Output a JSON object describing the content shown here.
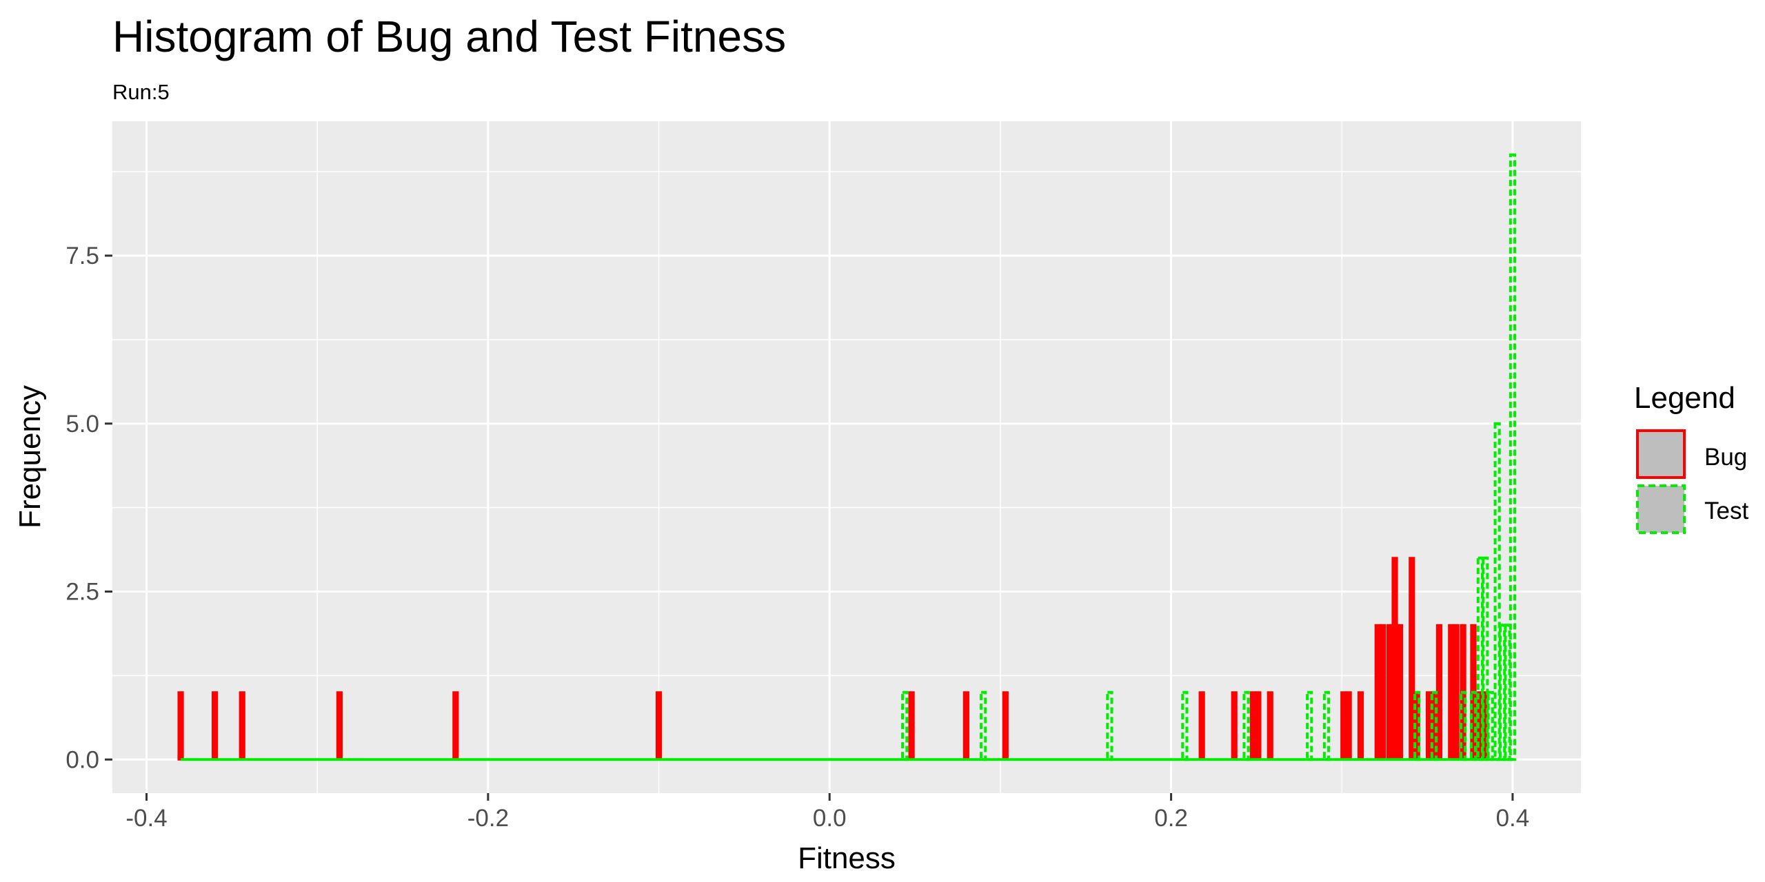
{
  "chart_data": {
    "type": "histogram",
    "title": "Histogram of Bug and Test Fitness",
    "subtitle": "Run:5",
    "xlabel": "Fitness",
    "ylabel": "Frequency",
    "xlim": [
      -0.42,
      0.44
    ],
    "ylim": [
      -0.5,
      9.5
    ],
    "x_ticks": [
      -0.4,
      -0.2,
      0.0,
      0.2,
      0.4
    ],
    "x_tick_labels": [
      "-0.4",
      "-0.2",
      "0.0",
      "0.2",
      "0.4"
    ],
    "y_ticks": [
      0,
      2.5,
      5,
      7.5
    ],
    "y_tick_labels": [
      "0.0",
      "2.5",
      "5.0",
      "7.5"
    ],
    "x_minor": [
      -0.3,
      -0.1,
      0.1,
      0.3
    ],
    "y_minor": [
      1.25,
      3.75,
      6.25,
      8.75
    ],
    "grid": true,
    "legend": {
      "title": "Legend",
      "position": "right",
      "entries": [
        {
          "name": "Bug",
          "color": "#ff0000",
          "linetype": "solid"
        },
        {
          "name": "Test",
          "color": "#00ee00",
          "linetype": "dashed"
        }
      ]
    },
    "panel_background": "#ebebeb",
    "series": [
      {
        "name": "Bug",
        "color": "#ff0000",
        "range": [
          -0.38,
          0.4
        ],
        "bins": [
          {
            "x": -0.38,
            "count": 1
          },
          {
            "x": -0.36,
            "count": 1
          },
          {
            "x": -0.344,
            "count": 1
          },
          {
            "x": -0.287,
            "count": 1
          },
          {
            "x": -0.219,
            "count": 1
          },
          {
            "x": -0.1,
            "count": 1
          },
          {
            "x": 0.048,
            "count": 1
          },
          {
            "x": 0.08,
            "count": 1
          },
          {
            "x": 0.103,
            "count": 1
          },
          {
            "x": 0.218,
            "count": 1
          },
          {
            "x": 0.237,
            "count": 1
          },
          {
            "x": 0.248,
            "count": 1
          },
          {
            "x": 0.251,
            "count": 1
          },
          {
            "x": 0.258,
            "count": 1
          },
          {
            "x": 0.301,
            "count": 1
          },
          {
            "x": 0.304,
            "count": 1
          },
          {
            "x": 0.311,
            "count": 1
          },
          {
            "x": 0.321,
            "count": 2
          },
          {
            "x": 0.324,
            "count": 2
          },
          {
            "x": 0.328,
            "count": 2
          },
          {
            "x": 0.331,
            "count": 3
          },
          {
            "x": 0.334,
            "count": 2
          },
          {
            "x": 0.341,
            "count": 3
          },
          {
            "x": 0.344,
            "count": 1
          },
          {
            "x": 0.351,
            "count": 1
          },
          {
            "x": 0.354,
            "count": 1
          },
          {
            "x": 0.357,
            "count": 2
          },
          {
            "x": 0.364,
            "count": 2
          },
          {
            "x": 0.367,
            "count": 2
          },
          {
            "x": 0.371,
            "count": 2
          },
          {
            "x": 0.377,
            "count": 2
          },
          {
            "x": 0.381,
            "count": 1
          },
          {
            "x": 0.384,
            "count": 1
          }
        ]
      },
      {
        "name": "Test",
        "color": "#00ee00",
        "range": [
          -0.38,
          0.4
        ],
        "bins": [
          {
            "x": 0.044,
            "count": 1
          },
          {
            "x": 0.09,
            "count": 1
          },
          {
            "x": 0.164,
            "count": 1
          },
          {
            "x": 0.208,
            "count": 1
          },
          {
            "x": 0.244,
            "count": 1
          },
          {
            "x": 0.281,
            "count": 1
          },
          {
            "x": 0.291,
            "count": 1
          },
          {
            "x": 0.344,
            "count": 1
          },
          {
            "x": 0.354,
            "count": 1
          },
          {
            "x": 0.371,
            "count": 1
          },
          {
            "x": 0.377,
            "count": 1
          },
          {
            "x": 0.381,
            "count": 3
          },
          {
            "x": 0.384,
            "count": 3
          },
          {
            "x": 0.387,
            "count": 1
          },
          {
            "x": 0.391,
            "count": 5
          },
          {
            "x": 0.394,
            "count": 2
          },
          {
            "x": 0.397,
            "count": 2
          },
          {
            "x": 0.4,
            "count": 9
          }
        ]
      }
    ]
  }
}
